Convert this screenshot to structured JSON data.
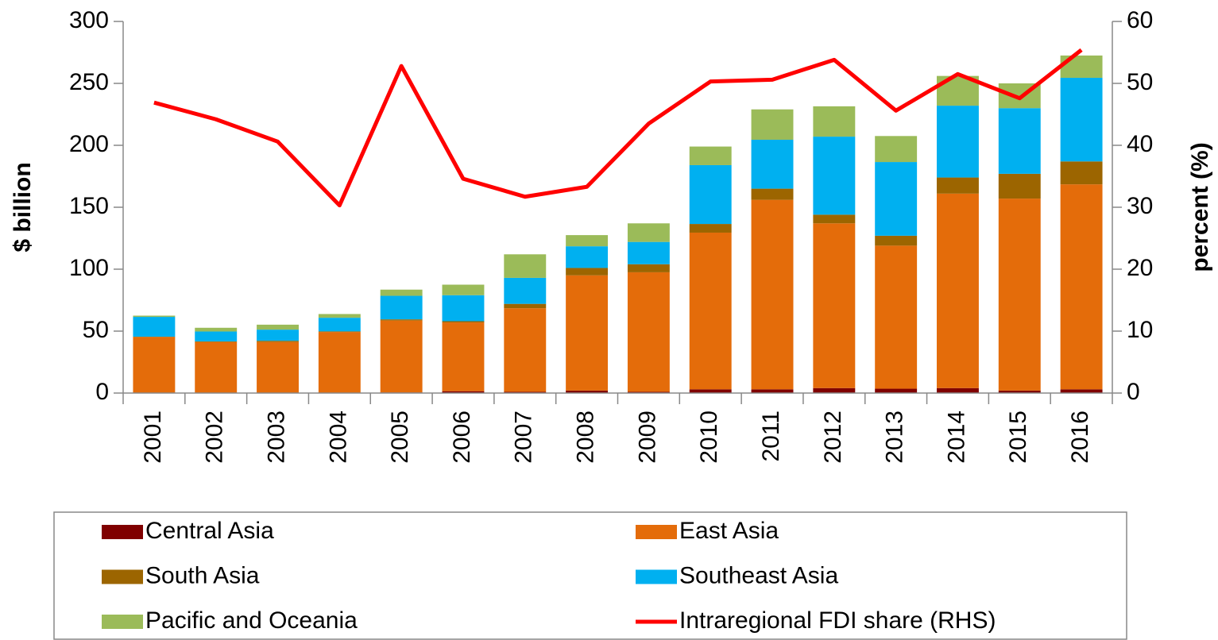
{
  "chart_data": {
    "type": "bar",
    "stacked": true,
    "ylabel": "$ billion",
    "y2label": "percent (%)",
    "categories": [
      "2001",
      "2002",
      "2003",
      "2004",
      "2005",
      "2006",
      "2007",
      "2008",
      "2009",
      "2010",
      "2011",
      "2012",
      "2013",
      "2014",
      "2015",
      "2016"
    ],
    "series": [
      {
        "name": "Central Asia",
        "color": "#800000",
        "values": [
          0.3,
          0.2,
          0.2,
          0.3,
          0.5,
          1.5,
          1,
          2,
          1,
          3,
          3,
          4,
          3.5,
          4,
          2,
          3
        ]
      },
      {
        "name": "East Asia",
        "color": "#e46c0a",
        "values": [
          45,
          41,
          41,
          49,
          58,
          55.5,
          67.5,
          93,
          96.5,
          126.5,
          153,
          133,
          115.5,
          157,
          155,
          165.5
        ]
      },
      {
        "name": "South Asia",
        "color": "#9c6500",
        "values": [
          0.2,
          0.5,
          1,
          0.5,
          1,
          1,
          3.5,
          6,
          6.5,
          7,
          9,
          7,
          8,
          13,
          20,
          18.5
        ]
      },
      {
        "name": "Southeast Asia",
        "color": "#00b0f0",
        "values": [
          16,
          8,
          9,
          11,
          19,
          21,
          21,
          17.5,
          18,
          47.5,
          39.5,
          63,
          59.5,
          58,
          53,
          67.5
        ]
      },
      {
        "name": "Pacific and Oceania",
        "color": "#9bbb59",
        "values": [
          1,
          3,
          4,
          3,
          5,
          8.5,
          19,
          9,
          15,
          15,
          24.5,
          24.5,
          21,
          24,
          20,
          18
        ]
      },
      {
        "name": "Intraregional FDI share (RHS)",
        "color": "#ff0000",
        "type": "line",
        "axis": "y2",
        "values": [
          46.9,
          44.2,
          40.6,
          30.3,
          52.8,
          34.6,
          31.7,
          33.3,
          43.5,
          50.3,
          50.6,
          53.8,
          45.6,
          51.5,
          47.6,
          55.4
        ]
      }
    ],
    "ylim": [
      0,
      300
    ],
    "yticks": [
      0,
      50,
      100,
      150,
      200,
      250,
      300
    ],
    "y2lim": [
      0,
      60
    ],
    "y2ticks": [
      0,
      10,
      20,
      30,
      40,
      50,
      60
    ],
    "grid": false,
    "legend": "bottom"
  }
}
